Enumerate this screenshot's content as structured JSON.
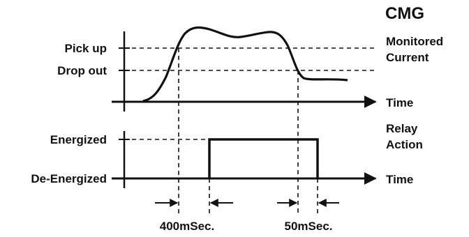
{
  "title": "CMG",
  "upper_plot": {
    "levels": [
      "Pick up",
      "Drop out"
    ],
    "right_label_line1": "Monitored",
    "right_label_line2": "Current",
    "axis_label": "Time"
  },
  "lower_plot": {
    "states": [
      "Energized",
      "De-Energized"
    ],
    "right_label_line1": "Relay",
    "right_label_line2": "Action",
    "axis_label": "Time"
  },
  "timing": {
    "delay_on": "400mSec.",
    "delay_off": "50mSec."
  }
}
